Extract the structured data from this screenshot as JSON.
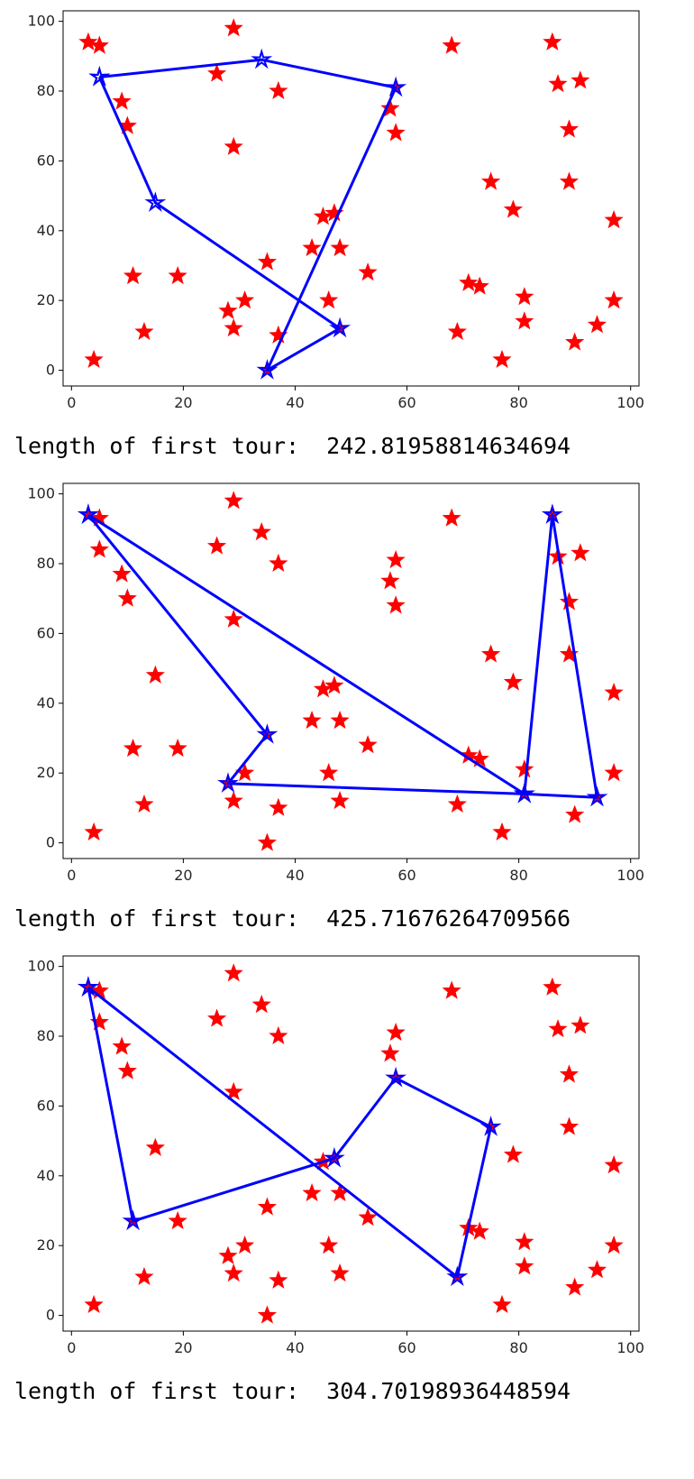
{
  "chart_data": [
    {
      "type": "scatter",
      "xlim": [
        -1.5,
        101.5
      ],
      "ylim": [
        -4.5,
        103
      ],
      "xticks": [
        0,
        20,
        40,
        60,
        80,
        100
      ],
      "yticks": [
        0,
        20,
        40,
        60,
        80,
        100
      ],
      "grid": false,
      "series": [
        {
          "marker": "star",
          "color": "#ff0000",
          "points": [
            [
              3,
              94
            ],
            [
              5,
              93
            ],
            [
              29,
              98
            ],
            [
              68,
              93
            ],
            [
              86,
              94
            ],
            [
              91,
              83
            ],
            [
              87,
              82
            ],
            [
              26,
              85
            ],
            [
              9,
              77
            ],
            [
              37,
              80
            ],
            [
              10,
              70
            ],
            [
              58,
              81
            ],
            [
              57,
              75
            ],
            [
              58,
              68
            ],
            [
              29,
              64
            ],
            [
              89,
              69
            ],
            [
              75,
              54
            ],
            [
              89,
              54
            ],
            [
              79,
              46
            ],
            [
              97,
              43
            ],
            [
              45,
              44
            ],
            [
              47,
              45
            ],
            [
              43,
              35
            ],
            [
              48,
              35
            ],
            [
              35,
              31
            ],
            [
              53,
              28
            ],
            [
              11,
              27
            ],
            [
              19,
              27
            ],
            [
              71,
              25
            ],
            [
              73,
              24
            ],
            [
              31,
              20
            ],
            [
              46,
              20
            ],
            [
              81,
              21
            ],
            [
              97,
              20
            ],
            [
              28,
              17
            ],
            [
              29,
              12
            ],
            [
              13,
              11
            ],
            [
              48,
              12
            ],
            [
              37,
              10
            ],
            [
              69,
              11
            ],
            [
              81,
              14
            ],
            [
              94,
              13
            ],
            [
              90,
              8
            ],
            [
              4,
              3
            ],
            [
              35,
              0
            ],
            [
              77,
              3
            ]
          ]
        },
        {
          "marker": "star-line",
          "color": "#0000ff",
          "points": [
            [
              5,
              84
            ],
            [
              34,
              89
            ],
            [
              58,
              81
            ],
            [
              35,
              0
            ],
            [
              48,
              12
            ],
            [
              15,
              48
            ],
            [
              5,
              84
            ]
          ]
        }
      ],
      "caption": "length of first tour:  242.81958814634694"
    },
    {
      "type": "scatter",
      "xlim": [
        -1.5,
        101.5
      ],
      "ylim": [
        -4.5,
        103
      ],
      "xticks": [
        0,
        20,
        40,
        60,
        80,
        100
      ],
      "yticks": [
        0,
        20,
        40,
        60,
        80,
        100
      ],
      "grid": false,
      "series": [
        {
          "marker": "star",
          "color": "#ff0000",
          "points": [
            [
              3,
              94
            ],
            [
              5,
              93
            ],
            [
              5,
              84
            ],
            [
              29,
              98
            ],
            [
              68,
              93
            ],
            [
              86,
              94
            ],
            [
              91,
              83
            ],
            [
              87,
              82
            ],
            [
              26,
              85
            ],
            [
              34,
              89
            ],
            [
              9,
              77
            ],
            [
              37,
              80
            ],
            [
              10,
              70
            ],
            [
              58,
              81
            ],
            [
              57,
              75
            ],
            [
              58,
              68
            ],
            [
              29,
              64
            ],
            [
              89,
              69
            ],
            [
              75,
              54
            ],
            [
              89,
              54
            ],
            [
              79,
              46
            ],
            [
              97,
              43
            ],
            [
              15,
              48
            ],
            [
              45,
              44
            ],
            [
              47,
              45
            ],
            [
              43,
              35
            ],
            [
              48,
              35
            ],
            [
              35,
              31
            ],
            [
              53,
              28
            ],
            [
              11,
              27
            ],
            [
              19,
              27
            ],
            [
              71,
              25
            ],
            [
              73,
              24
            ],
            [
              31,
              20
            ],
            [
              46,
              20
            ],
            [
              81,
              21
            ],
            [
              97,
              20
            ],
            [
              28,
              17
            ],
            [
              29,
              12
            ],
            [
              13,
              11
            ],
            [
              48,
              12
            ],
            [
              37,
              10
            ],
            [
              69,
              11
            ],
            [
              81,
              14
            ],
            [
              94,
              13
            ],
            [
              90,
              8
            ],
            [
              4,
              3
            ],
            [
              35,
              0
            ],
            [
              77,
              3
            ]
          ]
        },
        {
          "marker": "star-line",
          "color": "#0000ff",
          "points": [
            [
              3,
              94
            ],
            [
              35,
              31
            ],
            [
              28,
              17
            ],
            [
              81,
              14
            ],
            [
              94,
              13
            ],
            [
              86,
              94
            ],
            [
              81,
              14
            ],
            [
              3,
              94
            ]
          ]
        }
      ],
      "caption": "length of first tour:  425.71676264709566"
    },
    {
      "type": "scatter",
      "xlim": [
        -1.5,
        101.5
      ],
      "ylim": [
        -4.5,
        103
      ],
      "xticks": [
        0,
        20,
        40,
        60,
        80,
        100
      ],
      "yticks": [
        0,
        20,
        40,
        60,
        80,
        100
      ],
      "grid": false,
      "series": [
        {
          "marker": "star",
          "color": "#ff0000",
          "points": [
            [
              3,
              94
            ],
            [
              5,
              93
            ],
            [
              5,
              84
            ],
            [
              29,
              98
            ],
            [
              68,
              93
            ],
            [
              86,
              94
            ],
            [
              91,
              83
            ],
            [
              87,
              82
            ],
            [
              26,
              85
            ],
            [
              34,
              89
            ],
            [
              9,
              77
            ],
            [
              37,
              80
            ],
            [
              10,
              70
            ],
            [
              58,
              81
            ],
            [
              57,
              75
            ],
            [
              58,
              68
            ],
            [
              29,
              64
            ],
            [
              89,
              69
            ],
            [
              75,
              54
            ],
            [
              89,
              54
            ],
            [
              79,
              46
            ],
            [
              97,
              43
            ],
            [
              15,
              48
            ],
            [
              45,
              44
            ],
            [
              47,
              45
            ],
            [
              43,
              35
            ],
            [
              48,
              35
            ],
            [
              35,
              31
            ],
            [
              53,
              28
            ],
            [
              11,
              27
            ],
            [
              19,
              27
            ],
            [
              71,
              25
            ],
            [
              73,
              24
            ],
            [
              31,
              20
            ],
            [
              46,
              20
            ],
            [
              81,
              21
            ],
            [
              97,
              20
            ],
            [
              28,
              17
            ],
            [
              29,
              12
            ],
            [
              13,
              11
            ],
            [
              48,
              12
            ],
            [
              37,
              10
            ],
            [
              69,
              11
            ],
            [
              81,
              14
            ],
            [
              94,
              13
            ],
            [
              90,
              8
            ],
            [
              4,
              3
            ],
            [
              35,
              0
            ],
            [
              77,
              3
            ]
          ]
        },
        {
          "marker": "star-line",
          "color": "#0000ff",
          "points": [
            [
              3,
              94
            ],
            [
              69,
              11
            ],
            [
              75,
              54
            ],
            [
              58,
              68
            ],
            [
              47,
              45
            ],
            [
              11,
              27
            ],
            [
              3,
              94
            ]
          ]
        }
      ],
      "caption": "length of first tour:  304.70198936448594"
    }
  ]
}
